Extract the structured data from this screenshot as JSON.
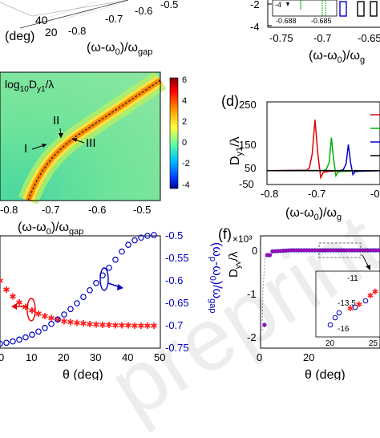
{
  "top_left": {
    "axis1_label": "(deg)",
    "axis1_ticks": [
      "40",
      "20"
    ],
    "axis2_label": "(ω-ω0)/ωgap",
    "axis2_ticks": [
      "-0.8",
      "-0.7",
      "-0.6",
      "-0.5"
    ]
  },
  "top_right": {
    "y_ticks": [
      "-2",
      "-4"
    ],
    "x_ticks": [
      "-0.75",
      "-0.7",
      "-0.65"
    ],
    "inset_ticks": [
      "-4",
      "-0.688",
      "-0.685"
    ],
    "x_label": "(ω-ω0)/ωg"
  },
  "panel_c": {
    "title": "log10Dy1/λ",
    "labels": [
      "I",
      "II",
      "III"
    ],
    "x_ticks": [
      "-0.8",
      "-0.7",
      "-0.6",
      "-0.5"
    ],
    "x_label": "(ω-ω0)/ωgap",
    "colorbar_ticks": [
      "6",
      "4",
      "2",
      "0",
      "-2",
      "-4"
    ],
    "colorbar_colors": [
      "#7f0000",
      "#ff0000",
      "#ffa000",
      "#ffff40",
      "#60ffa0",
      "#00c0ff",
      "#0040ff",
      "#00008f"
    ]
  },
  "chart_data": [
    {
      "type": "line",
      "panel": "d",
      "ylabel": "Dy1/λ",
      "xlabel": "(ω-ω0)/ωg",
      "x_ticks": [
        "-0.8",
        "-0.7"
      ],
      "y_ticks": [
        "250",
        "150",
        "50",
        "-50"
      ],
      "ylim": [
        -50,
        250
      ],
      "xlim": [
        -0.8,
        -0.6
      ],
      "series": [
        {
          "color": "#e00000",
          "x": [
            -0.8,
            -0.73,
            -0.725,
            -0.72,
            -0.715,
            -0.71,
            -0.705,
            -0.7,
            -0.69,
            -0.6
          ],
          "y": [
            0,
            2,
            10,
            60,
            185,
            60,
            -25,
            -5,
            -2,
            0
          ]
        },
        {
          "color": "#00b000",
          "x": [
            -0.8,
            -0.7,
            -0.695,
            -0.69,
            -0.686,
            -0.682,
            -0.678,
            -0.674,
            -0.66,
            -0.6
          ],
          "y": [
            0,
            1,
            5,
            30,
            120,
            40,
            -18,
            -4,
            -1,
            0
          ]
        },
        {
          "color": "#0000d0",
          "x": [
            -0.8,
            -0.67,
            -0.665,
            -0.66,
            -0.656,
            -0.652,
            -0.648,
            -0.644,
            -0.63,
            -0.6
          ],
          "y": [
            0,
            1,
            4,
            25,
            95,
            30,
            -14,
            -3,
            -1,
            0
          ]
        },
        {
          "color": "#000000",
          "x": [
            -0.8,
            -0.6
          ],
          "y": [
            0,
            0
          ]
        }
      ]
    },
    {
      "type": "scatter",
      "panel": "e",
      "xlabel": "θ (deg)",
      "ylabel_right": "(ωp-ω0)/ωgap",
      "x_ticks": [
        "0",
        "10",
        "20",
        "30",
        "40",
        "50"
      ],
      "y_right_ticks": [
        "-0.5",
        "-0.55",
        "-0.6",
        "-0.65",
        "-0.7",
        "-0.75"
      ],
      "xlim": [
        0,
        50
      ],
      "ylim_right": [
        -0.75,
        -0.5
      ],
      "series": [
        {
          "color": "#ff2020",
          "marker": "star",
          "x": [
            0,
            2,
            4,
            6,
            8,
            10,
            12,
            14,
            16,
            18,
            20,
            22,
            24,
            26,
            28,
            30,
            32,
            34,
            36,
            38,
            40,
            42,
            44,
            46,
            48
          ],
          "y_right": [
            -0.6,
            -0.62,
            -0.635,
            -0.648,
            -0.658,
            -0.666,
            -0.673,
            -0.679,
            -0.683,
            -0.687,
            -0.69,
            -0.692,
            -0.694,
            -0.695,
            -0.696,
            -0.697,
            -0.698,
            -0.698,
            -0.699,
            -0.699,
            -0.699,
            -0.7,
            -0.7,
            -0.7,
            -0.7
          ]
        },
        {
          "color": "#0000c0",
          "marker": "circle",
          "x": [
            0,
            2,
            4,
            6,
            8,
            10,
            12,
            14,
            16,
            18,
            20,
            22,
            24,
            26,
            28,
            30,
            32,
            34,
            36,
            38,
            40,
            42,
            44,
            46,
            48
          ],
          "y_right": [
            -0.74,
            -0.738,
            -0.735,
            -0.731,
            -0.726,
            -0.72,
            -0.713,
            -0.705,
            -0.696,
            -0.686,
            -0.675,
            -0.663,
            -0.65,
            -0.636,
            -0.621,
            -0.605,
            -0.588,
            -0.571,
            -0.553,
            -0.535,
            -0.52,
            -0.51,
            -0.504,
            -0.5,
            -0.498
          ]
        }
      ]
    },
    {
      "type": "scatter",
      "panel": "f",
      "xlabel": "θ (deg)",
      "ylabel": "Dyv/λ",
      "multiplier": "x10^3",
      "x_ticks": [
        "0",
        "20"
      ],
      "y_ticks": [
        "0",
        "-1",
        "-2"
      ],
      "inset_y_ticks": [
        "-11",
        "-13.5",
        "-16"
      ],
      "inset_x_ticks": [
        "20",
        "25"
      ]
    }
  ],
  "panel_labels": {
    "d": "(d)",
    "f": "(f)"
  },
  "f_multiplier": "×10³",
  "watermark": "preprint"
}
